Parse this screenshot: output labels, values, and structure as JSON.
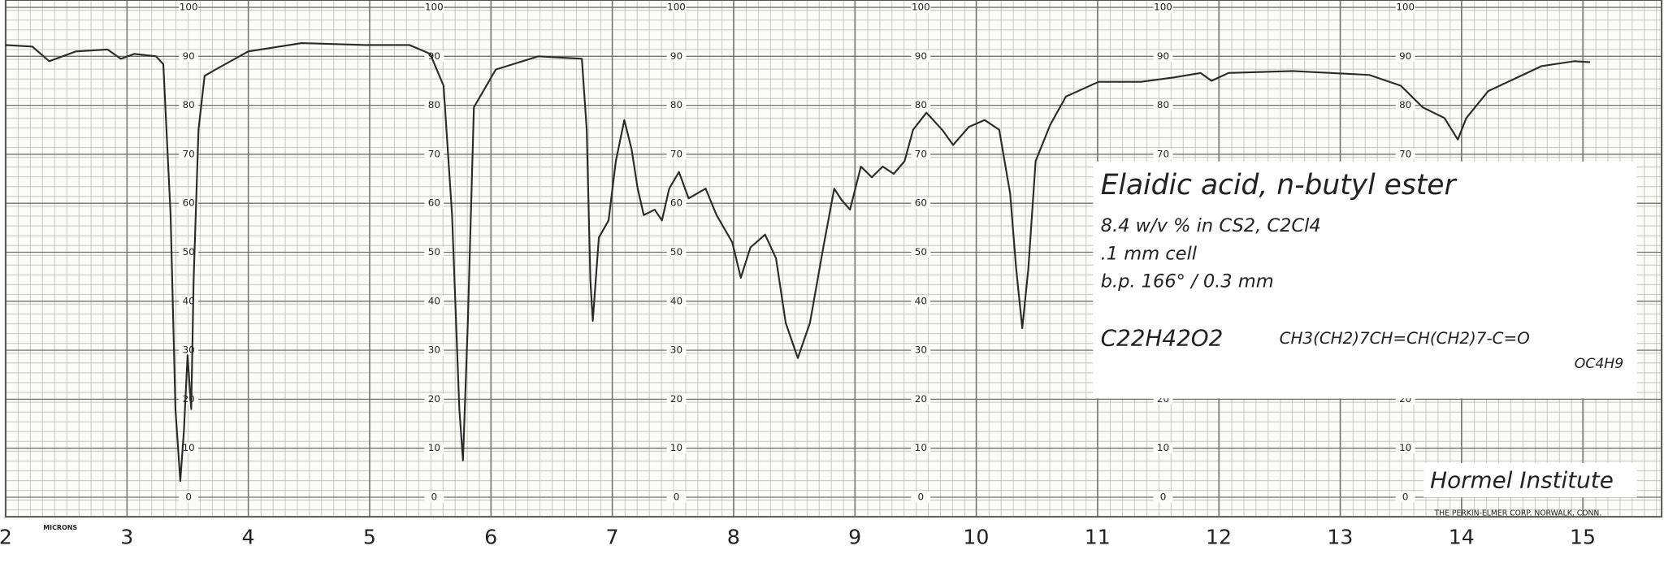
{
  "chart_data": {
    "type": "line",
    "x_label": "MICRONS",
    "x": [
      2.0,
      2.22,
      2.36,
      2.58,
      2.84,
      2.95,
      3.06,
      3.24,
      3.3,
      3.36,
      3.4,
      3.44,
      3.47,
      3.5,
      3.53,
      3.55,
      3.59,
      3.64,
      3.73,
      4.0,
      4.44,
      4.97,
      5.33,
      5.5,
      5.61,
      5.68,
      5.74,
      5.77,
      5.81,
      5.86,
      6.04,
      6.39,
      6.75,
      6.79,
      6.82,
      6.84,
      6.89,
      6.97,
      7.03,
      7.1,
      7.16,
      7.21,
      7.26,
      7.35,
      7.41,
      7.47,
      7.55,
      7.63,
      7.77,
      7.86,
      7.99,
      8.06,
      8.14,
      8.26,
      8.35,
      8.43,
      8.53,
      8.63,
      8.74,
      8.83,
      8.89,
      8.96,
      9.05,
      9.14,
      9.23,
      9.32,
      9.41,
      9.48,
      9.59,
      9.72,
      9.81,
      9.94,
      10.07,
      10.19,
      10.28,
      10.33,
      10.38,
      10.43,
      10.49,
      10.61,
      10.74,
      11.01,
      11.36,
      11.63,
      11.85,
      11.94,
      12.08,
      12.61,
      13.24,
      13.5,
      13.68,
      13.86,
      13.97,
      14.04,
      14.22,
      14.66,
      14.93,
      15.06
    ],
    "values": [
      92.3,
      92,
      89,
      91,
      91.4,
      89.5,
      90.5,
      90,
      88.4,
      57.6,
      18,
      3.3,
      13.6,
      29,
      18,
      44.4,
      75,
      86,
      87.3,
      91,
      92.7,
      92.3,
      92.3,
      90.5,
      84,
      57.6,
      18,
      7.5,
      35.6,
      79.6,
      87.3,
      90,
      89.5,
      75,
      44.4,
      36,
      53,
      56.5,
      68.6,
      77,
      71,
      63,
      57.6,
      58.7,
      56.5,
      63,
      66.4,
      61,
      63,
      57.6,
      52,
      44.8,
      51,
      53.6,
      48.8,
      35.6,
      28.4,
      35.6,
      51,
      63,
      60.7,
      58.7,
      67.5,
      65.3,
      67.5,
      66,
      68.6,
      75,
      78.5,
      75,
      71.9,
      75.6,
      77,
      75,
      62,
      46.6,
      34.5,
      46.6,
      68.6,
      76,
      81.8,
      84.8,
      84.8,
      85.7,
      86.6,
      85,
      86.6,
      87,
      86.2,
      84,
      79.6,
      77.4,
      73,
      77.4,
      82.9,
      88,
      89,
      88.8
    ],
    "color": "#2a2a2a",
    "xlim": [
      2,
      15.65
    ],
    "ylim": [
      -4,
      101.5
    ],
    "xticks": [
      2,
      3,
      4,
      5,
      6,
      7,
      8,
      9,
      10,
      11,
      12,
      13,
      14,
      15
    ],
    "yticks": [
      0,
      10,
      20,
      30,
      40,
      50,
      60,
      70,
      80,
      90,
      100
    ],
    "grid": true,
    "annotation": {
      "title": "Elaidic acid, n-butyl ester",
      "concentration": "8.4 w/v % in CS2, C2Cl4",
      "cell": ".1 mm cell",
      "boiling_point": "b.p. 166° / 0.3 mm",
      "formula": "C22H42O2",
      "structure": "CH3(CH2)7CH=CH(CH2)7-C=O",
      "structure_sub": "OC4H9"
    },
    "source": "Hormel Institute",
    "maker": "THE PERKIN-ELMER CORP. NORWALK, CONN."
  }
}
